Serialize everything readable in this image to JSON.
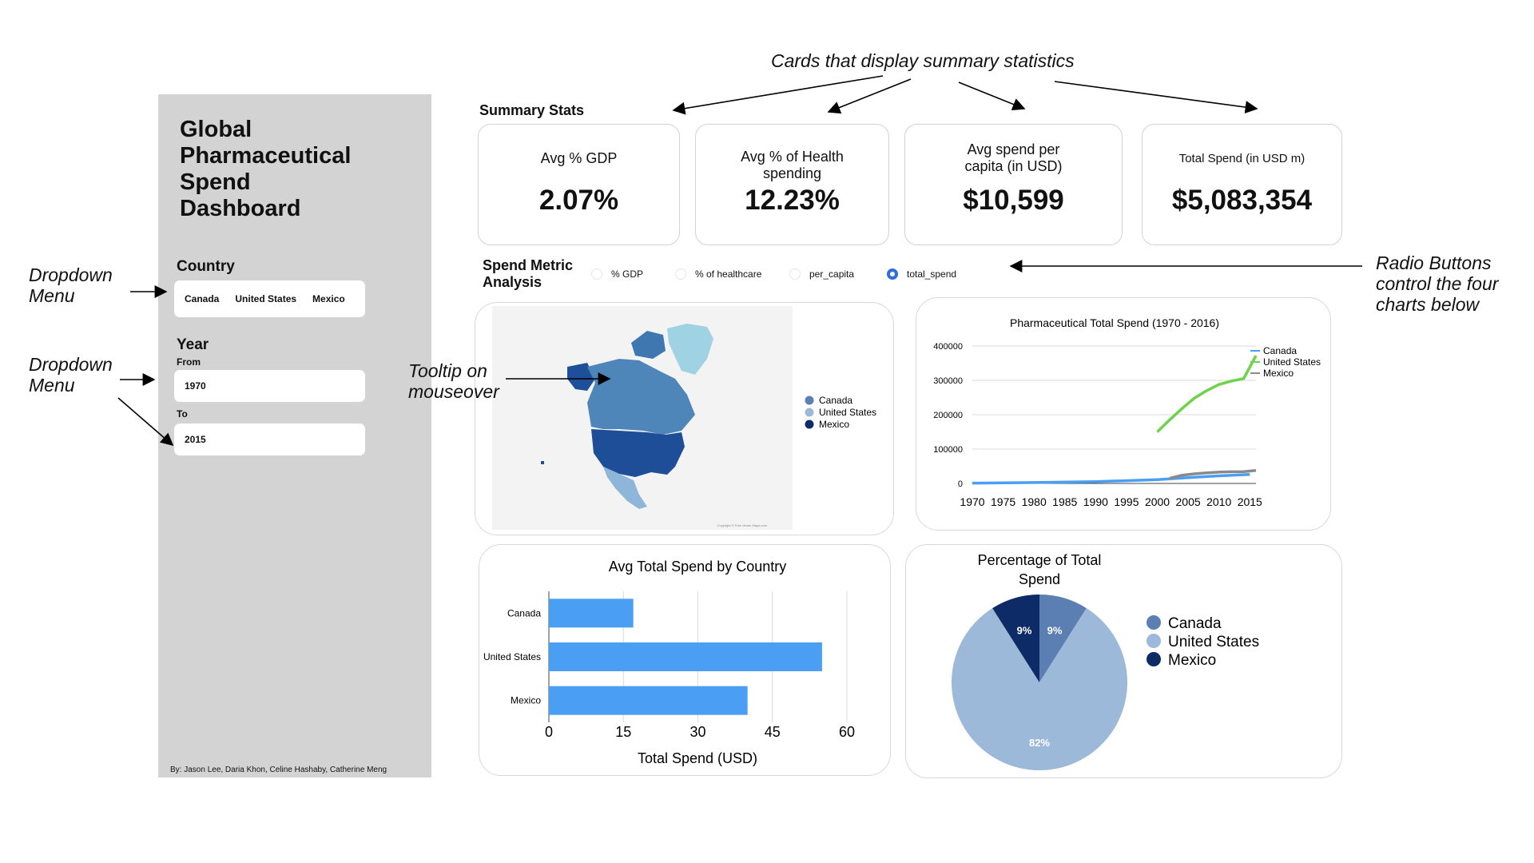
{
  "sidebar": {
    "title": "Global\nPharmaceutical\nSpend\nDashboard",
    "country_label": "Country",
    "countries": [
      "Canada",
      "United States",
      "Mexico"
    ],
    "year_label": "Year",
    "from_label": "From",
    "from_value": "1970",
    "to_label": "To",
    "to_value": "2015",
    "credits": "By: Jason Lee, Daria Khon, Celine Hashaby, Catherine Meng"
  },
  "summary": {
    "title": "Summary Stats",
    "cards": [
      {
        "label": "Avg % GDP",
        "value": "2.07%"
      },
      {
        "label": "Avg % of Health spending",
        "value": "12.23%"
      },
      {
        "label": "Avg spend per capita (in USD)",
        "value": "$10,599"
      },
      {
        "label": "Total Spend (in USD m)",
        "value": "$5,083,354"
      }
    ]
  },
  "metric": {
    "title": "Spend Metric Analysis",
    "options": [
      {
        "label": "% GDP",
        "checked": false
      },
      {
        "label": "% of healthcare",
        "checked": false
      },
      {
        "label": "per_capita",
        "checked": false
      },
      {
        "label": "total_spend",
        "checked": true
      }
    ]
  },
  "map": {
    "legend": [
      "Canada",
      "United States",
      "Mexico"
    ],
    "legend_colors": [
      "#5b7fb3",
      "#9db9d9",
      "#0d2b66"
    ],
    "copyright": "Copyright © Free Vector Maps.com"
  },
  "annotations": {
    "cards": "Cards that display summary statistics",
    "radio": "Radio Buttons\ncontrol the four\ncharts below",
    "dropdown1": "Dropdown\nMenu",
    "dropdown2": "Dropdown\nMenu",
    "tooltip": "Tooltip on\nmouseover"
  },
  "chart_data": [
    {
      "type": "line",
      "title": "Pharmaceutical Total Spend (1970 - 2016)",
      "x_ticks": [
        "1970",
        "1975",
        "1980",
        "1985",
        "1990",
        "1995",
        "2000",
        "2005",
        "2010",
        "2015"
      ],
      "y_ticks": [
        "0",
        "100000",
        "200000",
        "300000",
        "400000"
      ],
      "ylim": [
        0,
        400000
      ],
      "xlim": [
        1970,
        2016
      ],
      "legend_position": "top-right",
      "series": [
        {
          "name": "Canada",
          "color": "#4a9ff5",
          "points": [
            [
              1970,
              1000
            ],
            [
              1980,
              2500
            ],
            [
              1990,
              5000
            ],
            [
              2000,
              11000
            ],
            [
              2005,
              17000
            ],
            [
              2010,
              22000
            ],
            [
              2015,
              26000
            ]
          ]
        },
        {
          "name": "United States",
          "color": "#6ed24a",
          "points": [
            [
              2000,
              150000
            ],
            [
              2002,
              185000
            ],
            [
              2004,
              218000
            ],
            [
              2006,
              248000
            ],
            [
              2008,
              270000
            ],
            [
              2010,
              288000
            ],
            [
              2012,
              298000
            ],
            [
              2014,
              305000
            ],
            [
              2016,
              372000
            ]
          ]
        },
        {
          "name": "Mexico",
          "color": "#8a8a8a",
          "points": [
            [
              2002,
              15000
            ],
            [
              2004,
              24000
            ],
            [
              2006,
              28000
            ],
            [
              2008,
              31000
            ],
            [
              2010,
              33000
            ],
            [
              2012,
              34000
            ],
            [
              2014,
              34500
            ],
            [
              2016,
              38000
            ]
          ]
        }
      ]
    },
    {
      "type": "bar",
      "title": "Avg Total Spend by Country",
      "categories": [
        "Canada",
        "United States",
        "Mexico"
      ],
      "values": [
        17,
        55,
        40
      ],
      "xlabel": "Total Spend (USD)",
      "x_ticks": [
        0,
        15,
        30,
        45,
        60
      ],
      "xlim": [
        0,
        60
      ],
      "color": "#4a9ff5"
    },
    {
      "type": "pie",
      "title": "Percentage of Total Spend",
      "categories": [
        "Canada",
        "United States",
        "Mexico"
      ],
      "values": [
        9,
        82,
        9
      ],
      "labels": [
        "9%",
        "82%",
        "9%"
      ],
      "colors": [
        "#5b7fb3",
        "#9db9d9",
        "#0d2b66"
      ],
      "legend_position": "right"
    }
  ]
}
